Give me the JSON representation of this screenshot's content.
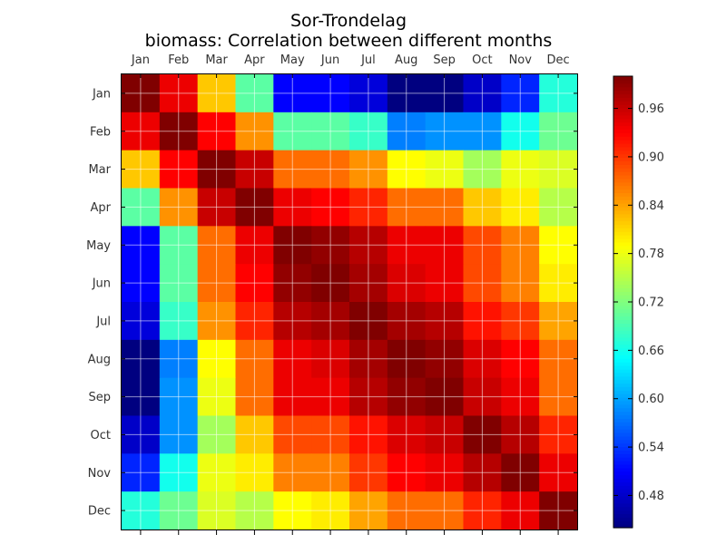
{
  "chart_data": {
    "type": "heatmap",
    "title": "Sor-Trondelag",
    "subtitle": "biomass: Correlation between different months",
    "xlabel": "",
    "ylabel": "",
    "x_categories": [
      "Jan",
      "Feb",
      "Mar",
      "Apr",
      "May",
      "Jun",
      "Jul",
      "Aug",
      "Sep",
      "Oct",
      "Nov",
      "Dec"
    ],
    "y_categories": [
      "Jan",
      "Feb",
      "Mar",
      "Apr",
      "May",
      "Jun",
      "Jul",
      "Aug",
      "Sep",
      "Oct",
      "Nov",
      "Dec"
    ],
    "values": [
      [
        1.0,
        0.94,
        0.82,
        0.7,
        0.51,
        0.51,
        0.49,
        0.44,
        0.44,
        0.48,
        0.53,
        0.67
      ],
      [
        0.94,
        1.0,
        0.93,
        0.85,
        0.7,
        0.7,
        0.68,
        0.58,
        0.59,
        0.59,
        0.66,
        0.71
      ],
      [
        0.82,
        0.93,
        1.0,
        0.96,
        0.87,
        0.87,
        0.85,
        0.79,
        0.78,
        0.74,
        0.78,
        0.77
      ],
      [
        0.7,
        0.85,
        0.96,
        1.0,
        0.94,
        0.93,
        0.91,
        0.87,
        0.87,
        0.82,
        0.8,
        0.75
      ],
      [
        0.51,
        0.7,
        0.87,
        0.94,
        1.0,
        0.99,
        0.97,
        0.94,
        0.94,
        0.89,
        0.86,
        0.79
      ],
      [
        0.51,
        0.7,
        0.87,
        0.93,
        0.99,
        1.0,
        0.98,
        0.95,
        0.94,
        0.89,
        0.86,
        0.8
      ],
      [
        0.49,
        0.68,
        0.85,
        0.91,
        0.97,
        0.98,
        1.0,
        0.98,
        0.97,
        0.92,
        0.9,
        0.84
      ],
      [
        0.44,
        0.58,
        0.79,
        0.87,
        0.94,
        0.95,
        0.98,
        1.0,
        0.99,
        0.95,
        0.93,
        0.87
      ],
      [
        0.44,
        0.59,
        0.78,
        0.87,
        0.94,
        0.94,
        0.97,
        0.99,
        1.0,
        0.96,
        0.94,
        0.87
      ],
      [
        0.48,
        0.59,
        0.74,
        0.82,
        0.89,
        0.89,
        0.92,
        0.95,
        0.96,
        1.0,
        0.97,
        0.91
      ],
      [
        0.53,
        0.66,
        0.78,
        0.8,
        0.86,
        0.86,
        0.9,
        0.93,
        0.94,
        0.97,
        1.0,
        0.94
      ],
      [
        0.67,
        0.71,
        0.77,
        0.75,
        0.79,
        0.8,
        0.84,
        0.87,
        0.87,
        0.91,
        0.94,
        1.0
      ]
    ],
    "colormap": "jet",
    "vmin": 0.44,
    "vmax": 1.0,
    "colorbar_ticks": [
      "0.48",
      "0.54",
      "0.60",
      "0.66",
      "0.72",
      "0.78",
      "0.84",
      "0.90",
      "0.96"
    ],
    "x_ticks_position": "top",
    "grid": true
  }
}
